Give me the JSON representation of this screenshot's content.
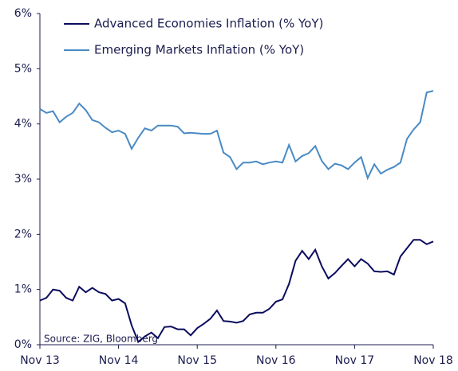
{
  "chart_data": {
    "type": "line",
    "annotation": "Source: ZIG, Bloomberg",
    "categories": [
      "Nov 13",
      null,
      null,
      null,
      null,
      null,
      null,
      null,
      null,
      null,
      null,
      null,
      "Nov 14",
      null,
      null,
      null,
      null,
      null,
      null,
      null,
      null,
      null,
      null,
      null,
      "Nov 15",
      null,
      null,
      null,
      null,
      null,
      null,
      null,
      null,
      null,
      null,
      null,
      "Nov 16",
      null,
      null,
      null,
      null,
      null,
      null,
      null,
      null,
      null,
      null,
      null,
      "Nov 17",
      null,
      null,
      null,
      null,
      null,
      null,
      null,
      null,
      null,
      null,
      null,
      "Nov 18"
    ],
    "series": [
      {
        "name": "Advanced Economies Inflation (% YoY)",
        "color": "#0b0b5e",
        "values": [
          0.8,
          0.85,
          1.0,
          0.98,
          0.85,
          0.8,
          1.05,
          0.95,
          1.03,
          0.95,
          0.92,
          0.8,
          0.83,
          0.75,
          0.35,
          0.05,
          0.15,
          0.22,
          0.12,
          0.32,
          0.33,
          0.28,
          0.28,
          0.17,
          0.3,
          0.38,
          0.47,
          0.62,
          0.43,
          0.42,
          0.4,
          0.43,
          0.55,
          0.58,
          0.58,
          0.65,
          0.78,
          0.82,
          1.1,
          1.52,
          1.7,
          1.55,
          1.72,
          1.42,
          1.2,
          1.3,
          1.43,
          1.55,
          1.42,
          1.55,
          1.47,
          1.33,
          1.32,
          1.33,
          1.27,
          1.6,
          1.75,
          1.9,
          1.9,
          1.82,
          1.87
        ]
      },
      {
        "name": "Emerging Markets Inflation (% YoY)",
        "color": "#4a8ac4",
        "values": [
          4.27,
          4.2,
          4.23,
          4.03,
          4.13,
          4.2,
          4.37,
          4.25,
          4.07,
          4.03,
          3.93,
          3.85,
          3.88,
          3.82,
          3.55,
          3.75,
          3.92,
          3.88,
          3.97,
          3.97,
          3.97,
          3.95,
          3.83,
          3.84,
          3.83,
          3.82,
          3.82,
          3.88,
          3.48,
          3.4,
          3.18,
          3.3,
          3.3,
          3.32,
          3.27,
          3.3,
          3.32,
          3.3,
          3.62,
          3.32,
          3.42,
          3.47,
          3.6,
          3.33,
          3.18,
          3.28,
          3.25,
          3.18,
          3.3,
          3.4,
          3.02,
          3.27,
          3.1,
          3.17,
          3.22,
          3.3,
          3.73,
          3.9,
          4.03,
          4.57,
          4.6
        ]
      }
    ],
    "ylim": [
      0,
      6
    ],
    "yticks": [
      {
        "value": 0,
        "label": "0%"
      },
      {
        "value": 1,
        "label": "1%"
      },
      {
        "value": 2,
        "label": "2%"
      },
      {
        "value": 3,
        "label": "3%"
      },
      {
        "value": 4,
        "label": "4%"
      },
      {
        "value": 5,
        "label": "5%"
      },
      {
        "value": 6,
        "label": "6%"
      }
    ],
    "grid": false,
    "legend": "top-left"
  }
}
